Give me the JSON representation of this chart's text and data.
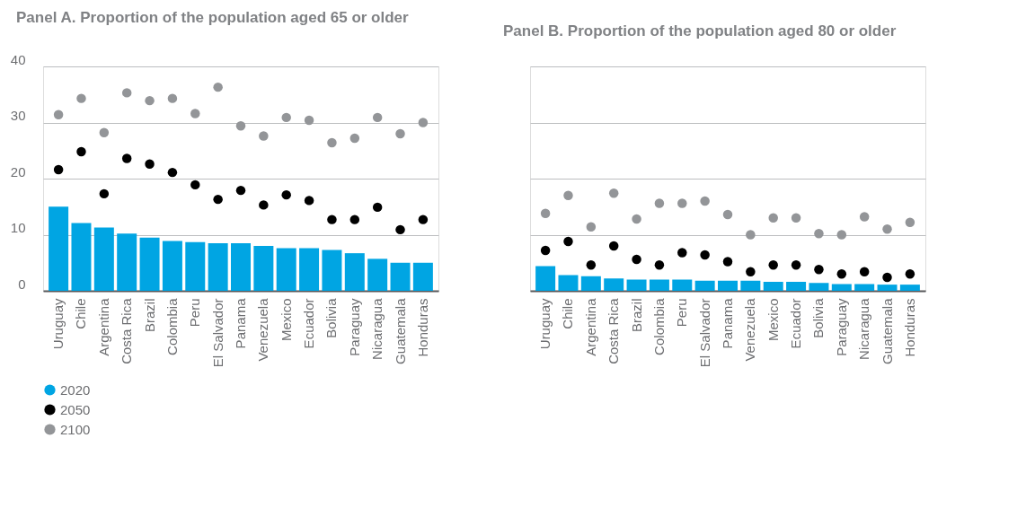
{
  "chart_data": [
    {
      "type": "bar",
      "title": "Panel A. Proportion of the population aged 65 or older",
      "categories": [
        "Uruguay",
        "Chile",
        "Argentina",
        "Costa Rica",
        "Brazil",
        "Colombia",
        "Peru",
        "El Salvador",
        "Panama",
        "Venezuela",
        "Mexico",
        "Ecuador",
        "Bolivia",
        "Paraguay",
        "Nicaragua",
        "Guatemala",
        "Honduras"
      ],
      "series": [
        {
          "name": "2020",
          "color": "#00a5e3",
          "values": [
            15.0,
            12.1,
            11.3,
            10.2,
            9.5,
            8.9,
            8.7,
            8.5,
            8.5,
            8.0,
            7.6,
            7.6,
            7.3,
            6.7,
            5.7,
            5.0,
            5.0
          ]
        },
        {
          "name": "2050",
          "type": "scatter",
          "color": "#000000",
          "values": [
            21.6,
            24.8,
            17.3,
            23.6,
            22.6,
            21.1,
            18.9,
            16.3,
            17.9,
            15.3,
            17.1,
            16.1,
            12.7,
            12.7,
            14.9,
            10.9,
            12.7
          ]
        },
        {
          "name": "2100",
          "type": "scatter",
          "color": "#939598",
          "values": [
            31.4,
            34.3,
            28.2,
            35.3,
            33.9,
            34.3,
            31.6,
            36.3,
            29.4,
            27.6,
            30.9,
            30.4,
            26.4,
            27.2,
            30.9,
            28.0,
            30.0
          ]
        }
      ],
      "ylim": [
        0,
        40
      ],
      "yticks": [
        0,
        10,
        20,
        30,
        40
      ],
      "grid": "y",
      "legend": "bottom",
      "marker": "circle"
    },
    {
      "type": "bar",
      "title": "Panel B. Proportion of the population aged 80 or older",
      "categories": [
        "Uruguay",
        "Chile",
        "Argentina",
        "Costa Rica",
        "Brazil",
        "Colombia",
        "Peru",
        "El Salvador",
        "Panama",
        "Venezuela",
        "Mexico",
        "Ecuador",
        "Bolivia",
        "Paraguay",
        "Nicaragua",
        "Guatemala",
        "Honduras"
      ],
      "series": [
        {
          "name": "2020",
          "color": "#00a5e3",
          "values": [
            4.4,
            2.8,
            2.6,
            2.2,
            2.0,
            2.0,
            2.0,
            1.8,
            1.8,
            1.8,
            1.6,
            1.6,
            1.4,
            1.2,
            1.2,
            1.1,
            1.1
          ]
        },
        {
          "name": "2050",
          "type": "scatter",
          "color": "#000000",
          "values": [
            7.2,
            8.8,
            4.6,
            8.0,
            5.6,
            4.6,
            6.8,
            6.4,
            5.2,
            3.4,
            4.6,
            4.6,
            3.8,
            3.0,
            3.4,
            2.4,
            3.0
          ]
        },
        {
          "name": "2100",
          "type": "scatter",
          "color": "#939598",
          "values": [
            13.8,
            17.0,
            11.4,
            17.4,
            12.8,
            15.6,
            15.6,
            16.0,
            13.6,
            10.0,
            13.0,
            13.0,
            10.2,
            10.0,
            13.2,
            11.0,
            12.2
          ]
        }
      ],
      "ylim": [
        0,
        40
      ],
      "yticks": [
        0,
        10,
        20,
        30,
        40
      ],
      "grid": "y",
      "tick_labels": "x",
      "legend": false,
      "marker": "circle"
    }
  ]
}
